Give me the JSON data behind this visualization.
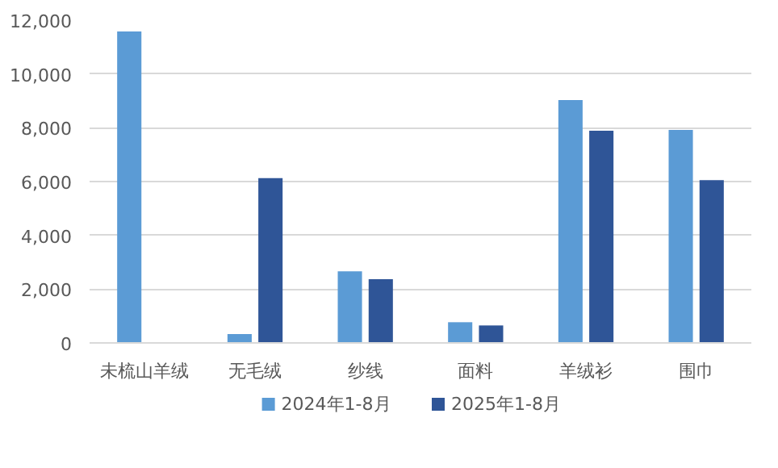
{
  "chart_data": {
    "type": "bar",
    "categories": [
      "未梳山羊绒",
      "无毛绒",
      "纱线",
      "面料",
      "羊绒衫",
      "围巾"
    ],
    "series": [
      {
        "name": "2024年1-8月",
        "color": "#5b9bd5",
        "values": [
          11580,
          330,
          2660,
          770,
          9030,
          7920
        ]
      },
      {
        "name": "2025年1-8月",
        "color": "#2f5597",
        "values": [
          null,
          6130,
          2370,
          650,
          7890,
          6050
        ]
      }
    ],
    "ylim": [
      0,
      12000
    ],
    "yticks": [
      {
        "value": 0,
        "label": "0"
      },
      {
        "value": 2000,
        "label": "2,000"
      },
      {
        "value": 4000,
        "label": "4,000"
      },
      {
        "value": 6000,
        "label": "6,000"
      },
      {
        "value": 8000,
        "label": "8,000"
      },
      {
        "value": 10000,
        "label": "10,000"
      },
      {
        "value": 12000,
        "label": "12,000"
      }
    ],
    "grid": "y",
    "legend": "bottom"
  }
}
